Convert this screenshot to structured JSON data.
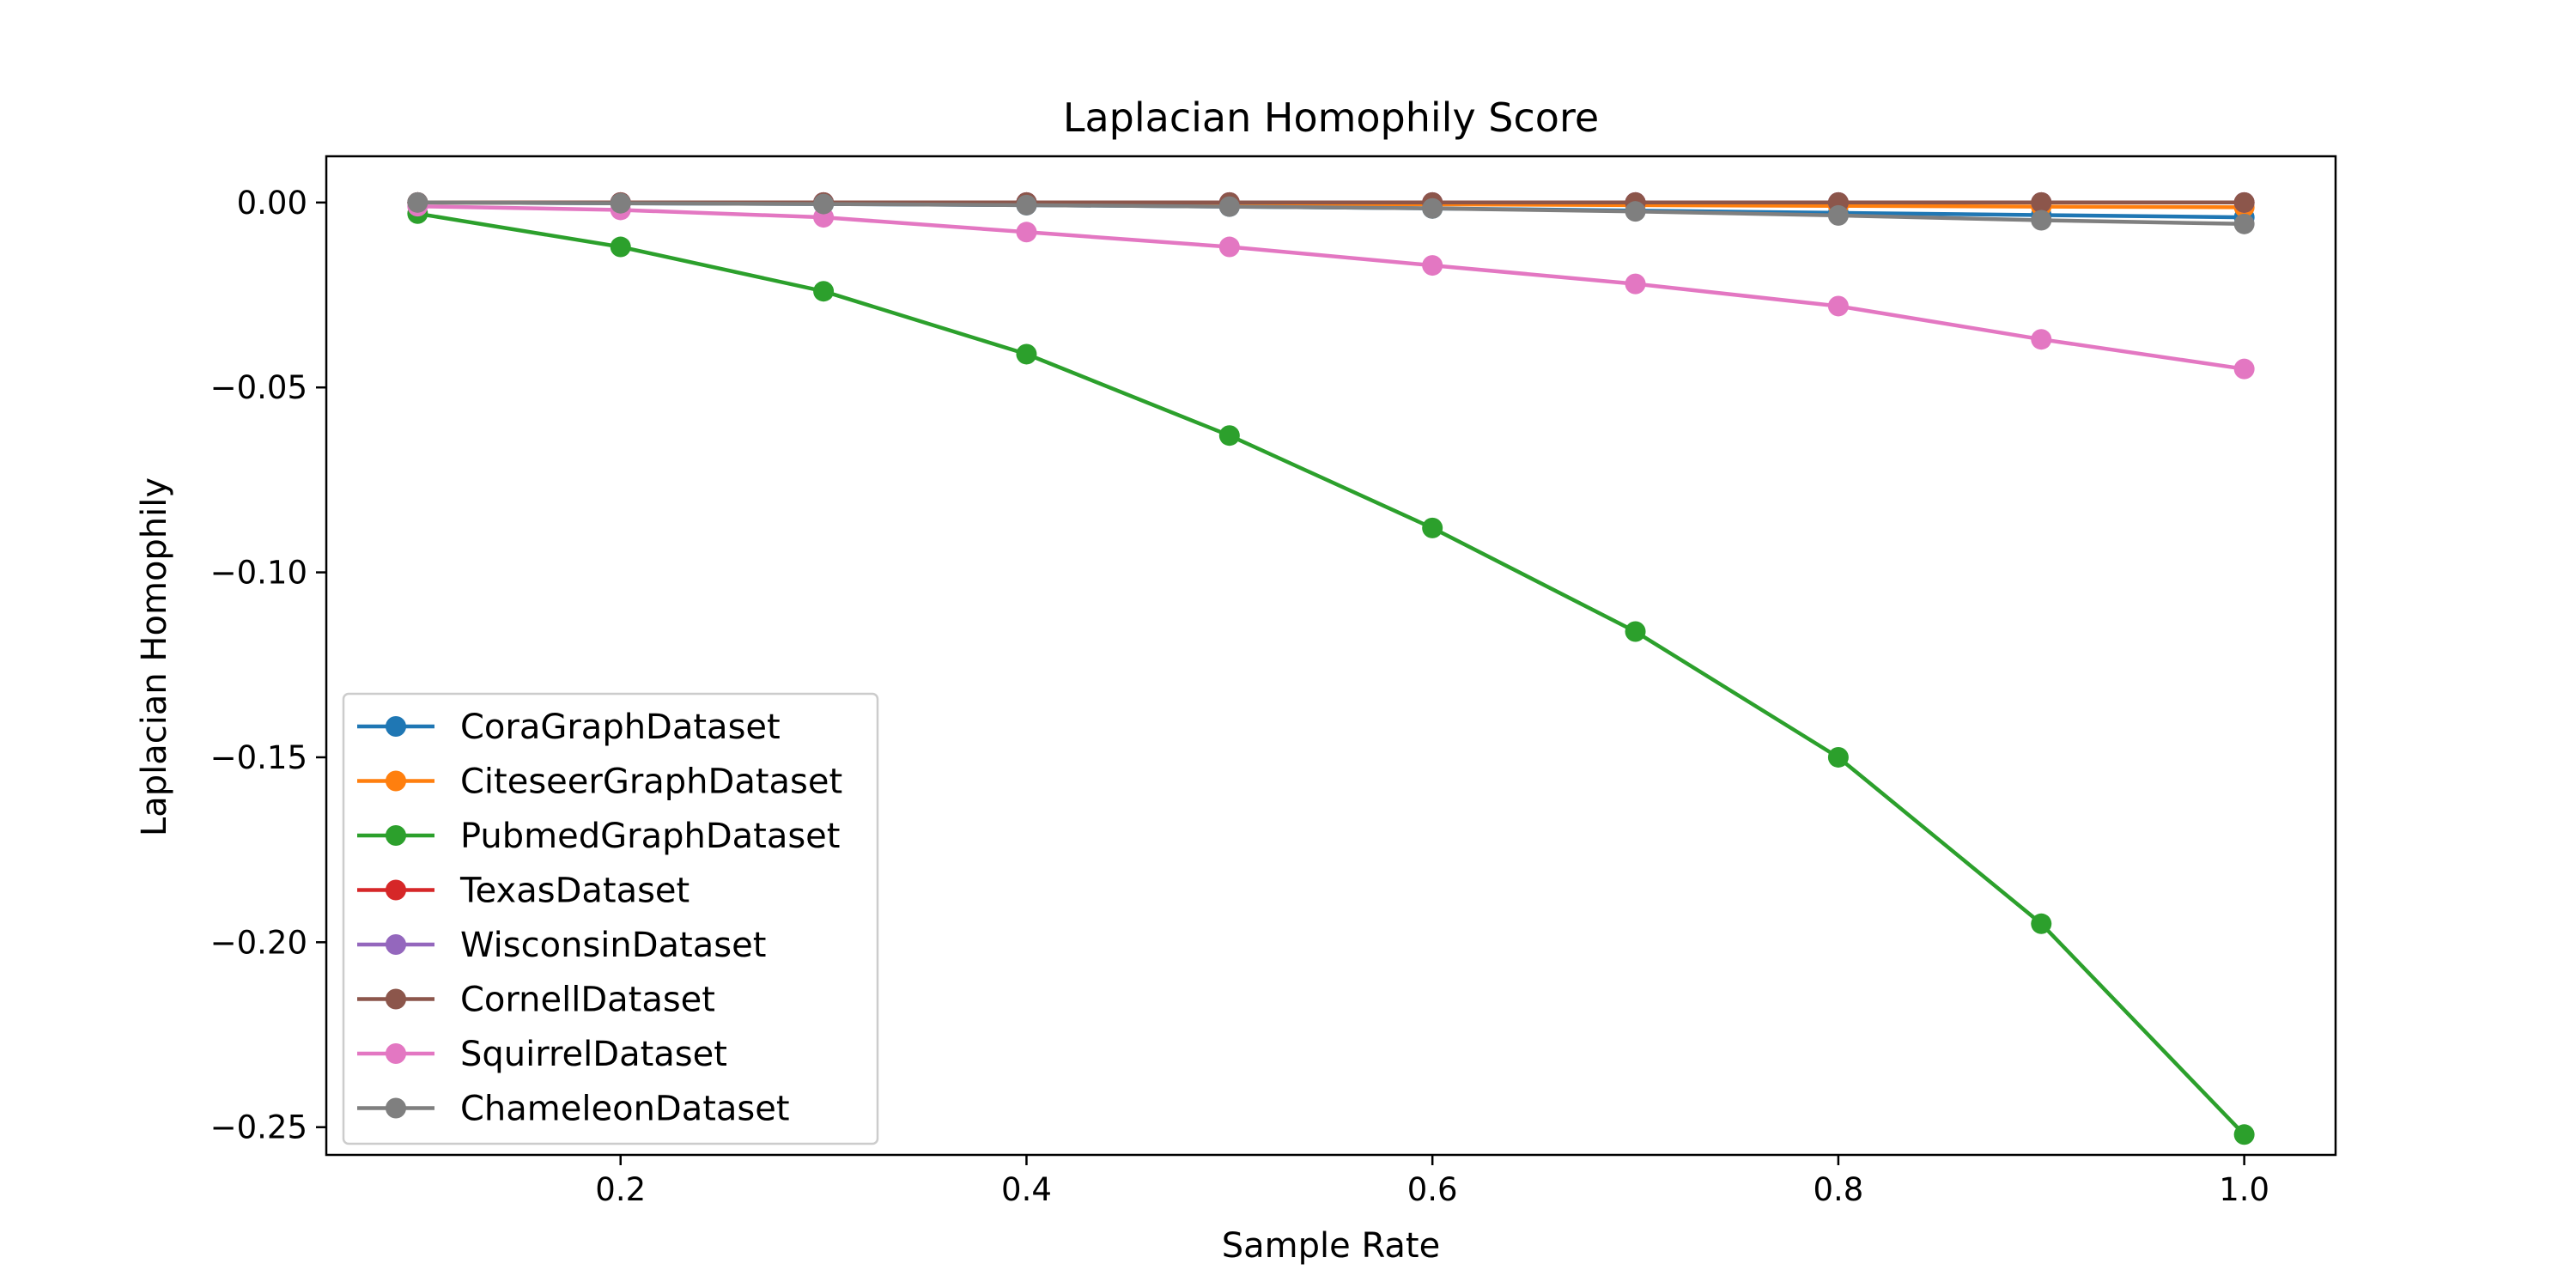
{
  "chart_data": {
    "type": "line",
    "title": "Laplacian Homophily Score",
    "xlabel": "Sample Rate",
    "ylabel": "Laplacian Homophily",
    "xlim": [
      0.055,
      1.045
    ],
    "ylim": [
      -0.2575,
      0.0125
    ],
    "xticks": [
      0.2,
      0.4,
      0.6,
      0.8,
      1.0
    ],
    "xtick_labels": [
      "0.2",
      "0.4",
      "0.6",
      "0.8",
      "1.0"
    ],
    "yticks": [
      0.0,
      -0.05,
      -0.1,
      -0.15,
      -0.2,
      -0.25
    ],
    "ytick_labels": [
      "0.00",
      "−0.05",
      "−0.10",
      "−0.15",
      "−0.20",
      "−0.25"
    ],
    "grid": false,
    "legend_position": "lower-left",
    "x": [
      0.1,
      0.2,
      0.3,
      0.4,
      0.5,
      0.6,
      0.7,
      0.8,
      0.9,
      1.0
    ],
    "series": [
      {
        "name": "CoraGraphDataset",
        "color": "#1f77b4",
        "values": [
          0.0,
          -0.0002,
          -0.0004,
          -0.0007,
          -0.0011,
          -0.0016,
          -0.0022,
          -0.0028,
          -0.0034,
          -0.004
        ]
      },
      {
        "name": "CiteseerGraphDataset",
        "color": "#ff7f0e",
        "values": [
          0.0,
          -0.0001,
          -0.0002,
          -0.0003,
          -0.0004,
          -0.0005,
          -0.0007,
          -0.0009,
          -0.0011,
          -0.0013
        ]
      },
      {
        "name": "PubmedGraphDataset",
        "color": "#2ca02c",
        "values": [
          -0.003,
          -0.012,
          -0.024,
          -0.041,
          -0.063,
          -0.088,
          -0.116,
          -0.15,
          -0.195,
          -0.252
        ]
      },
      {
        "name": "TexasDataset",
        "color": "#d62728",
        "values": [
          0.0,
          0.0,
          0.0,
          0.0,
          0.0,
          0.0,
          0.0,
          0.0,
          0.0,
          0.0
        ]
      },
      {
        "name": "WisconsinDataset",
        "color": "#9467bd",
        "values": [
          0.0,
          0.0,
          0.0,
          0.0,
          0.0,
          0.0,
          0.0,
          0.0,
          0.0,
          0.0
        ]
      },
      {
        "name": "CornellDataset",
        "color": "#8c564b",
        "values": [
          0.0,
          0.0,
          0.0,
          0.0,
          0.0,
          0.0,
          0.0,
          0.0,
          0.0,
          0.0
        ]
      },
      {
        "name": "SquirrelDataset",
        "color": "#e377c2",
        "values": [
          -0.001,
          -0.002,
          -0.004,
          -0.008,
          -0.012,
          -0.017,
          -0.022,
          -0.028,
          -0.037,
          -0.045
        ]
      },
      {
        "name": "ChameleonDataset",
        "color": "#7f7f7f",
        "values": [
          0.0,
          -0.0002,
          -0.0004,
          -0.0007,
          -0.0011,
          -0.0016,
          -0.0024,
          -0.0035,
          -0.0048,
          -0.0058
        ]
      }
    ]
  }
}
